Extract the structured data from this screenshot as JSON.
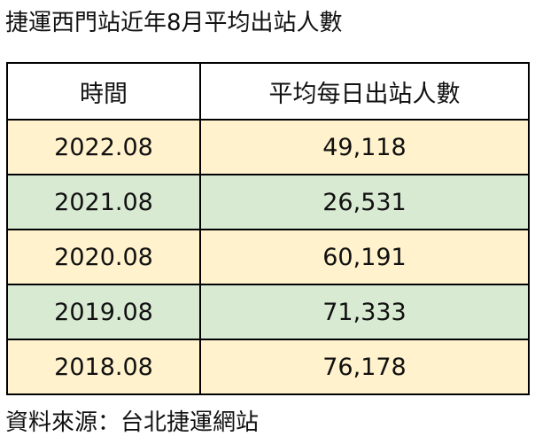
{
  "title": "捷運西門站近年8月平均出站人數",
  "table": {
    "headers": [
      "時間",
      "平均每日出站人數"
    ],
    "rows": [
      {
        "period": "2022.08",
        "value": "49,118"
      },
      {
        "period": "2021.08",
        "value": "26,531"
      },
      {
        "period": "2020.08",
        "value": "60,191"
      },
      {
        "period": "2019.08",
        "value": "71,333"
      },
      {
        "period": "2018.08",
        "value": "76,178"
      }
    ]
  },
  "row_colors": [
    "#fff2cc",
    "#d9ead3",
    "#fff2cc",
    "#d9ead3",
    "#fff2cc"
  ],
  "source": "資料來源：台北捷運網站"
}
